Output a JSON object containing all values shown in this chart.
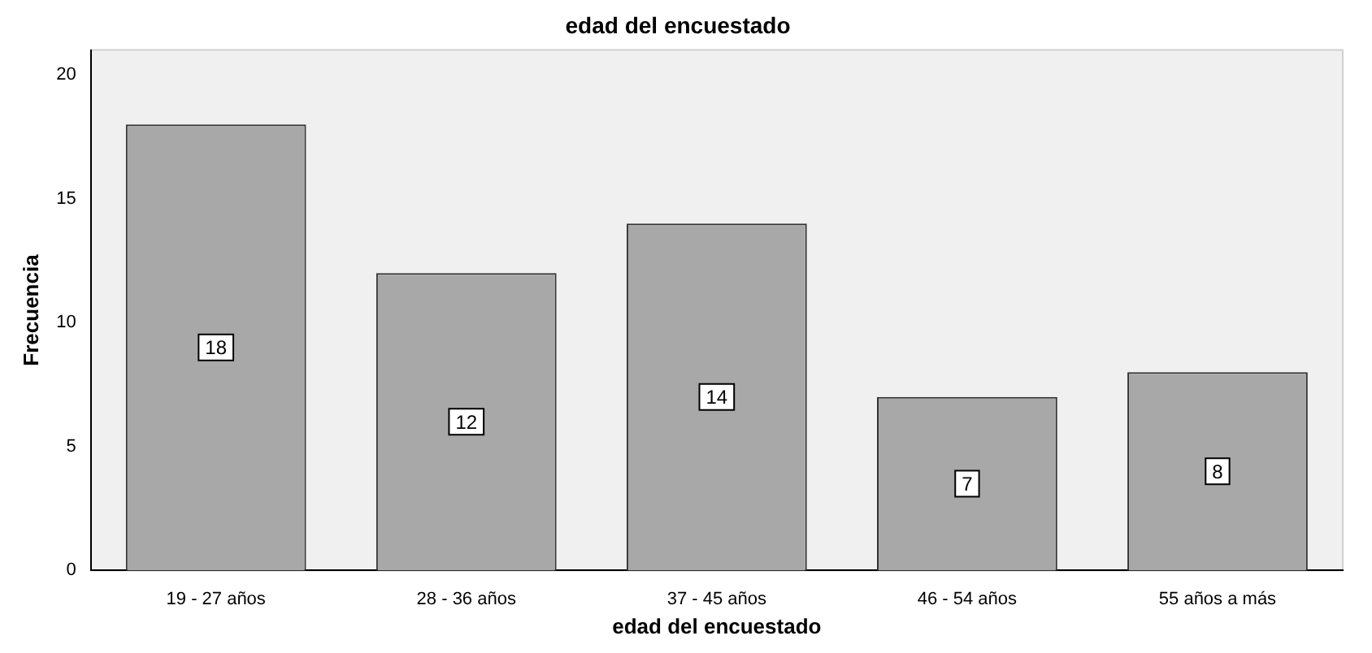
{
  "chart_data": {
    "type": "bar",
    "title": "edad del encuestado",
    "xlabel": "edad del encuestado",
    "ylabel": "Frecuencia",
    "categories": [
      "19 - 27 años",
      "28 - 36 años",
      "37 - 45 años",
      "46 - 54 años",
      "55 años a más"
    ],
    "values": [
      18,
      12,
      14,
      7,
      8
    ],
    "color": "#a8a8a8",
    "ylim": [
      0,
      21
    ],
    "yticks": [
      0,
      5,
      10,
      15,
      20
    ],
    "grid": false,
    "legend": false,
    "data_labels": true
  }
}
